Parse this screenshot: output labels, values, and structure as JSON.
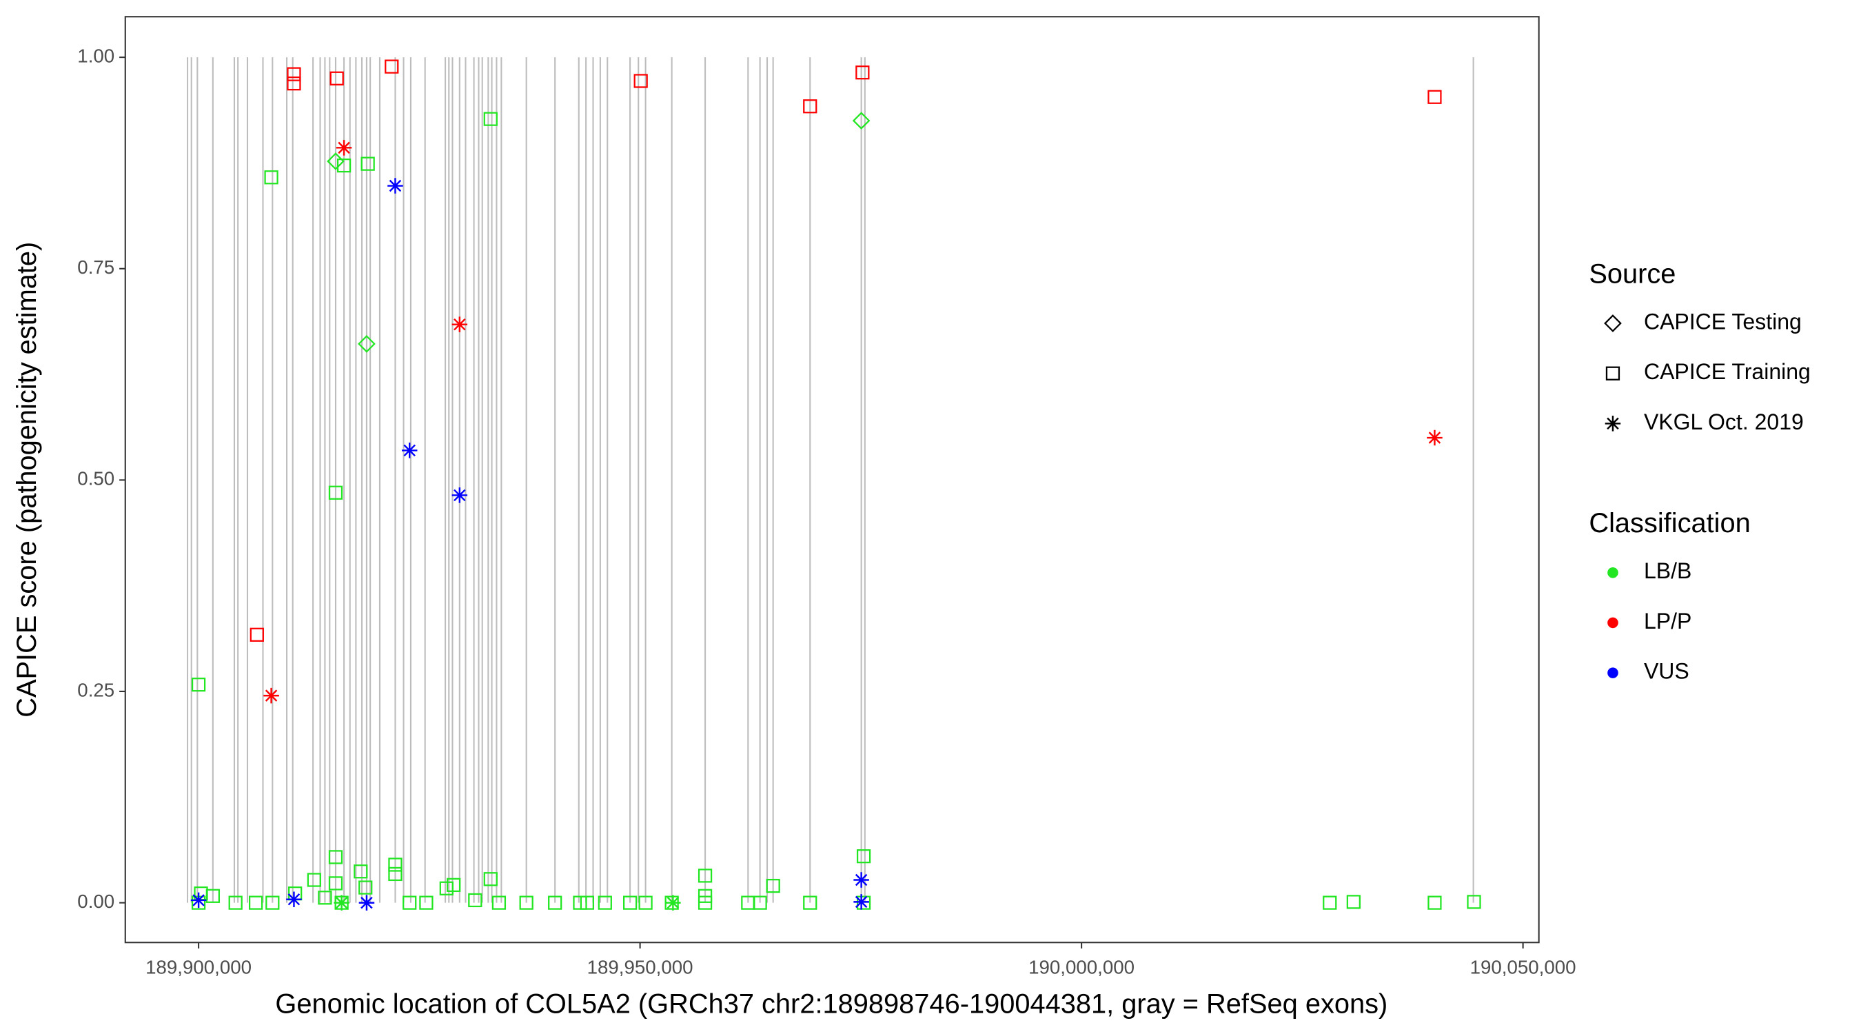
{
  "chart_data": {
    "type": "scatter",
    "x_label": "Genomic location of COL5A2 (GRCh37 chr2:189898746-190044381, gray = RefSeq exons)",
    "y_label": "CAPICE score (pathogenicity estimate)",
    "xlim": [
      189891700,
      190051800
    ],
    "ylim": [
      -0.047,
      1.048
    ],
    "xticks": [
      {
        "value": 189900000,
        "label": "189,900,000"
      },
      {
        "value": 189950000,
        "label": "189,950,000"
      },
      {
        "value": 190000000,
        "label": "190,000,000"
      },
      {
        "value": 190050000,
        "label": "190,050,000"
      }
    ],
    "yticks": [
      {
        "value": 0,
        "label": "0.00"
      },
      {
        "value": 0.25,
        "label": "0.25"
      },
      {
        "value": 0.5,
        "label": "0.50"
      },
      {
        "value": 0.75,
        "label": "0.75"
      },
      {
        "value": 1,
        "label": "1.00"
      }
    ],
    "exon_color": "#bdbdbd",
    "exons": [
      189898746,
      189899190,
      189899865,
      189901620,
      189904050,
      189904455,
      189905535,
      189907290,
      189908370,
      189909990,
      189910665,
      189912960,
      189913770,
      189914310,
      189914850,
      189915525,
      189916470,
      189917145,
      189917820,
      189918495,
      189919035,
      189919440,
      189920520,
      189922275,
      189923220,
      189924030,
      189925650,
      189927945,
      189928350,
      189928755,
      189929565,
      189930240,
      189931185,
      189931725,
      189932130,
      189932805,
      189933210,
      189933750,
      189934290,
      189937125,
      189940365,
      189943065,
      189943875,
      189944685,
      189945495,
      189946305,
      189948870,
      189949815,
      189950625,
      189953595,
      189957375,
      189962235,
      189963585,
      189964395,
      189965070,
      189969255,
      189975060,
      189975465,
      190044381
    ],
    "legend_source_title": "Source",
    "sources": [
      {
        "name": "CAPICE Testing",
        "shape": "diamond"
      },
      {
        "name": "CAPICE Training",
        "shape": "square"
      },
      {
        "name": "VKGL Oct. 2019",
        "shape": "asterisk"
      }
    ],
    "legend_class_title": "Classification",
    "classes": [
      {
        "name": "LB/B",
        "color": "#22e622"
      },
      {
        "name": "LP/P",
        "color": "#ff0000"
      },
      {
        "name": "VUS",
        "color": "#0000ff"
      }
    ],
    "series": [
      {
        "source": "CAPICE Testing",
        "classification": "LB/B",
        "x": [
          189915525,
          189919035,
          189975060
        ],
        "values": [
          0.877,
          0.661,
          0.925
        ]
      },
      {
        "source": "CAPICE Training",
        "classification": "LB/B",
        "x": [
          189900000,
          189908235,
          189915525,
          189916470,
          189919170,
          189933075,
          189900000,
          189900270,
          189901620,
          189904185,
          189906480,
          189908370,
          189910935,
          189913095,
          189914310,
          189915525,
          189915525,
          189916200,
          189918360,
          189918900,
          189922275,
          189922275,
          189923895,
          189925785,
          189928080,
          189928890,
          189931320,
          189933075,
          189934020,
          189937125,
          189940365,
          189943200,
          189944010,
          189946035,
          189948870,
          189950625,
          189953595,
          189957375,
          189957375,
          189957375,
          189962235,
          189963585,
          189965070,
          189969255,
          189975330,
          189975330,
          190028115,
          190030815,
          190039995,
          190044450
        ],
        "values": [
          0.258,
          0.858,
          0.485,
          0.872,
          0.874,
          0.927,
          0,
          0.011,
          0.008,
          0,
          0,
          0,
          0.011,
          0.027,
          0.006,
          0.054,
          0.023,
          0,
          0.037,
          0.018,
          0.045,
          0.034,
          0,
          0,
          0.017,
          0.021,
          0.003,
          0.028,
          0,
          0,
          0,
          0,
          0,
          0,
          0,
          0,
          0,
          0.032,
          0.008,
          0,
          0,
          0,
          0.02,
          0,
          0.055,
          0,
          0,
          0.001,
          0,
          0.001
        ]
      },
      {
        "source": "CAPICE Training",
        "classification": "LP/P",
        "x": [
          189910800,
          189910800,
          189906615,
          189915660,
          189921870,
          189950085,
          189969255,
          189975195,
          190039995
        ],
        "values": [
          0.98,
          0.969,
          0.317,
          0.975,
          0.989,
          0.972,
          0.942,
          0.982,
          0.953
        ]
      },
      {
        "source": "VKGL Oct. 2019",
        "classification": "LB/B",
        "x": [
          189953730,
          189916200
        ],
        "values": [
          0,
          0
        ]
      },
      {
        "source": "VKGL Oct. 2019",
        "classification": "LP/P",
        "x": [
          189908235,
          189916470,
          189929565,
          190039995
        ],
        "values": [
          0.245,
          0.893,
          0.684,
          0.55
        ]
      },
      {
        "source": "VKGL Oct. 2019",
        "classification": "VUS",
        "x": [
          189922275,
          189923895,
          189929565,
          189975060,
          189975060,
          189910800,
          189919035,
          189900000
        ],
        "values": [
          0.848,
          0.535,
          0.482,
          0.027,
          0.001,
          0.004,
          0,
          0.003
        ]
      }
    ]
  }
}
